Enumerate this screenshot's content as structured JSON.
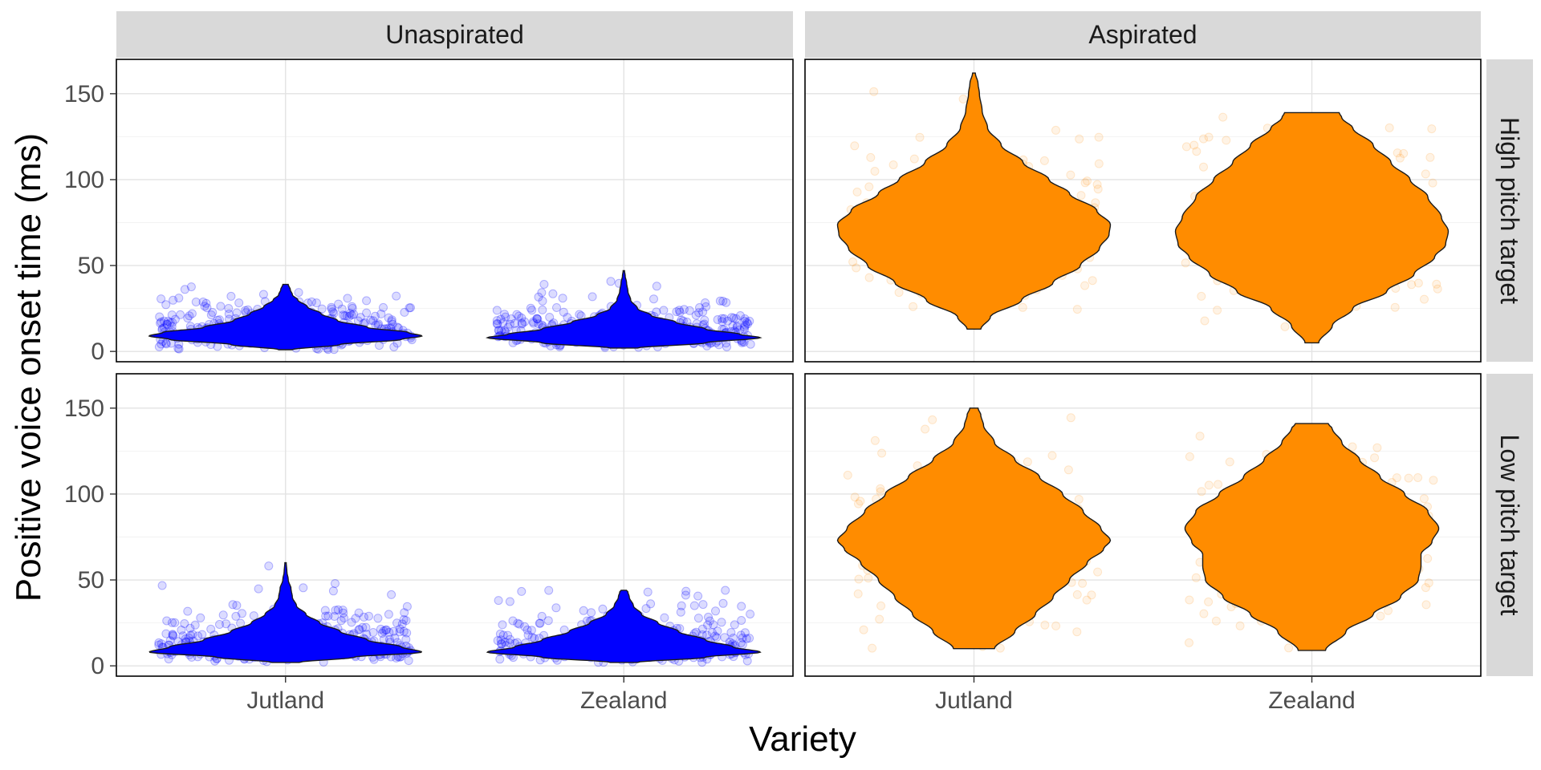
{
  "chart_data": {
    "type": "violin",
    "xlabel": "Variety",
    "ylabel": "Positive voice onset time (ms)",
    "categories": [
      "Jutland",
      "Zealand"
    ],
    "yticks": [
      0,
      50,
      100,
      150
    ],
    "ylim": [
      -6,
      170
    ],
    "column_facets": [
      "Unaspirated",
      "Aspirated"
    ],
    "row_facets": [
      "High pitch target",
      "Low pitch target"
    ],
    "colors": {
      "Unaspirated": "#0000ff",
      "Aspirated": "#ff8c00"
    },
    "grid": true,
    "legend": "none",
    "panels": [
      {
        "row": 0,
        "col": 0,
        "aspiration": "Unaspirated",
        "pitch": "High pitch target",
        "violins": [
          {
            "category": "Jutland",
            "min": 1,
            "max": 39,
            "profile": [
              [
                1,
                0.05
              ],
              [
                4,
                0.4
              ],
              [
                7,
                0.85
              ],
              [
                9,
                1.0
              ],
              [
                11,
                0.9
              ],
              [
                14,
                0.6
              ],
              [
                18,
                0.38
              ],
              [
                22,
                0.26
              ],
              [
                26,
                0.16
              ],
              [
                30,
                0.09
              ],
              [
                33,
                0.05
              ],
              [
                36,
                0.035
              ],
              [
                39,
                0.02
              ]
            ]
          },
          {
            "category": "Zealand",
            "min": 2,
            "max": 47,
            "profile": [
              [
                2,
                0.1
              ],
              [
                5,
                0.6
              ],
              [
                8,
                1.0
              ],
              [
                10,
                0.85
              ],
              [
                13,
                0.6
              ],
              [
                17,
                0.38
              ],
              [
                21,
                0.2
              ],
              [
                25,
                0.1
              ],
              [
                30,
                0.05
              ],
              [
                35,
                0.03
              ],
              [
                40,
                0.02
              ],
              [
                44,
                0.01
              ],
              [
                47,
                0.005
              ]
            ]
          }
        ]
      },
      {
        "row": 0,
        "col": 1,
        "aspiration": "Aspirated",
        "pitch": "High pitch target",
        "violins": [
          {
            "category": "Jutland",
            "min": 13,
            "max": 162,
            "profile": [
              [
                13,
                0.05
              ],
              [
                20,
                0.12
              ],
              [
                30,
                0.35
              ],
              [
                40,
                0.58
              ],
              [
                50,
                0.78
              ],
              [
                60,
                0.92
              ],
              [
                68,
                0.99
              ],
              [
                74,
                1.0
              ],
              [
                82,
                0.9
              ],
              [
                92,
                0.7
              ],
              [
                100,
                0.55
              ],
              [
                110,
                0.36
              ],
              [
                120,
                0.2
              ],
              [
                130,
                0.1
              ],
              [
                140,
                0.06
              ],
              [
                150,
                0.04
              ],
              [
                156,
                0.03
              ],
              [
                162,
                0.01
              ]
            ]
          },
          {
            "category": "Zealand",
            "min": 5,
            "max": 139,
            "profile": [
              [
                5,
                0.05
              ],
              [
                15,
                0.15
              ],
              [
                25,
                0.3
              ],
              [
                35,
                0.55
              ],
              [
                45,
                0.75
              ],
              [
                55,
                0.9
              ],
              [
                62,
                0.98
              ],
              [
                70,
                1.0
              ],
              [
                78,
                0.95
              ],
              [
                90,
                0.85
              ],
              [
                100,
                0.72
              ],
              [
                110,
                0.58
              ],
              [
                120,
                0.45
              ],
              [
                130,
                0.3
              ],
              [
                136,
                0.22
              ],
              [
                139,
                0.2
              ]
            ]
          }
        ]
      },
      {
        "row": 1,
        "col": 0,
        "aspiration": "Unaspirated",
        "pitch": "Low pitch target",
        "violins": [
          {
            "category": "Jutland",
            "min": 2,
            "max": 60,
            "profile": [
              [
                2,
                0.1
              ],
              [
                5,
                0.5
              ],
              [
                8,
                1.0
              ],
              [
                11,
                0.85
              ],
              [
                15,
                0.6
              ],
              [
                20,
                0.4
              ],
              [
                25,
                0.25
              ],
              [
                30,
                0.15
              ],
              [
                35,
                0.08
              ],
              [
                40,
                0.05
              ],
              [
                45,
                0.04
              ],
              [
                50,
                0.02
              ],
              [
                55,
                0.01
              ],
              [
                60,
                0.005
              ]
            ]
          },
          {
            "category": "Zealand",
            "min": 2,
            "max": 44,
            "profile": [
              [
                2,
                0.1
              ],
              [
                5,
                0.6
              ],
              [
                8,
                1.0
              ],
              [
                11,
                0.8
              ],
              [
                15,
                0.6
              ],
              [
                20,
                0.4
              ],
              [
                25,
                0.25
              ],
              [
                30,
                0.13
              ],
              [
                35,
                0.07
              ],
              [
                40,
                0.04
              ],
              [
                43,
                0.03
              ],
              [
                44,
                0.02
              ]
            ]
          }
        ]
      },
      {
        "row": 1,
        "col": 1,
        "aspiration": "Aspirated",
        "pitch": "Low pitch target",
        "violins": [
          {
            "category": "Jutland",
            "min": 10,
            "max": 150,
            "profile": [
              [
                10,
                0.15
              ],
              [
                20,
                0.3
              ],
              [
                30,
                0.45
              ],
              [
                40,
                0.58
              ],
              [
                50,
                0.7
              ],
              [
                60,
                0.83
              ],
              [
                68,
                0.95
              ],
              [
                73,
                1.0
              ],
              [
                80,
                0.93
              ],
              [
                90,
                0.8
              ],
              [
                100,
                0.65
              ],
              [
                110,
                0.48
              ],
              [
                120,
                0.3
              ],
              [
                130,
                0.15
              ],
              [
                140,
                0.07
              ],
              [
                146,
                0.05
              ],
              [
                150,
                0.03
              ]
            ]
          },
          {
            "category": "Zealand",
            "min": 9,
            "max": 141,
            "profile": [
              [
                9,
                0.1
              ],
              [
                20,
                0.25
              ],
              [
                30,
                0.45
              ],
              [
                40,
                0.65
              ],
              [
                50,
                0.78
              ],
              [
                58,
                0.8
              ],
              [
                65,
                0.8
              ],
              [
                72,
                0.88
              ],
              [
                80,
                0.93
              ],
              [
                90,
                0.85
              ],
              [
                100,
                0.68
              ],
              [
                110,
                0.5
              ],
              [
                120,
                0.35
              ],
              [
                130,
                0.22
              ],
              [
                138,
                0.15
              ],
              [
                141,
                0.12
              ]
            ]
          }
        ]
      }
    ]
  }
}
